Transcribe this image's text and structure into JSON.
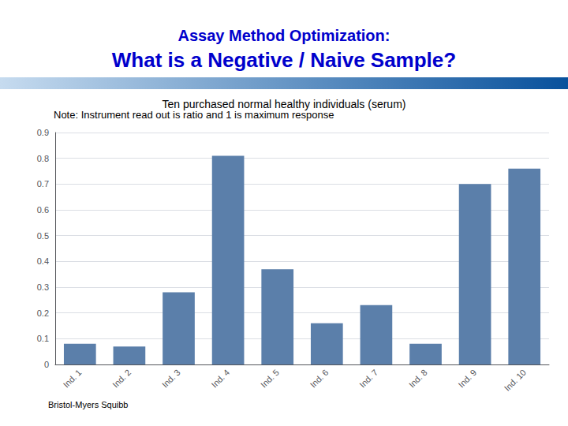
{
  "chart_data": {
    "type": "bar",
    "title": [
      "Assay Method Optimization:",
      "What is a Negative / Naive Sample?"
    ],
    "subtitle": "Ten purchased normal healthy individuals (serum)",
    "annotations": [
      "Note: Instrument read out is ratio and 1 is maximum response",
      "Bristol-Myers Squibb"
    ],
    "categories": [
      "Ind. 1",
      "Ind. 2",
      "Ind. 3",
      "Ind. 4",
      "Ind. 5",
      "Ind. 6",
      "Ind. 7",
      "Ind. 8",
      "Ind. 9",
      "Ind. 10"
    ],
    "values": [
      0.08,
      0.07,
      0.28,
      0.81,
      0.37,
      0.16,
      0.23,
      0.08,
      0.7,
      0.76
    ],
    "color": "#5b7faa",
    "ylim": [
      0,
      0.9
    ],
    "yticks": [
      0,
      0.1,
      0.2,
      0.3,
      0.4,
      0.5,
      0.6,
      0.7,
      0.8,
      0.9
    ],
    "grid": true
  }
}
